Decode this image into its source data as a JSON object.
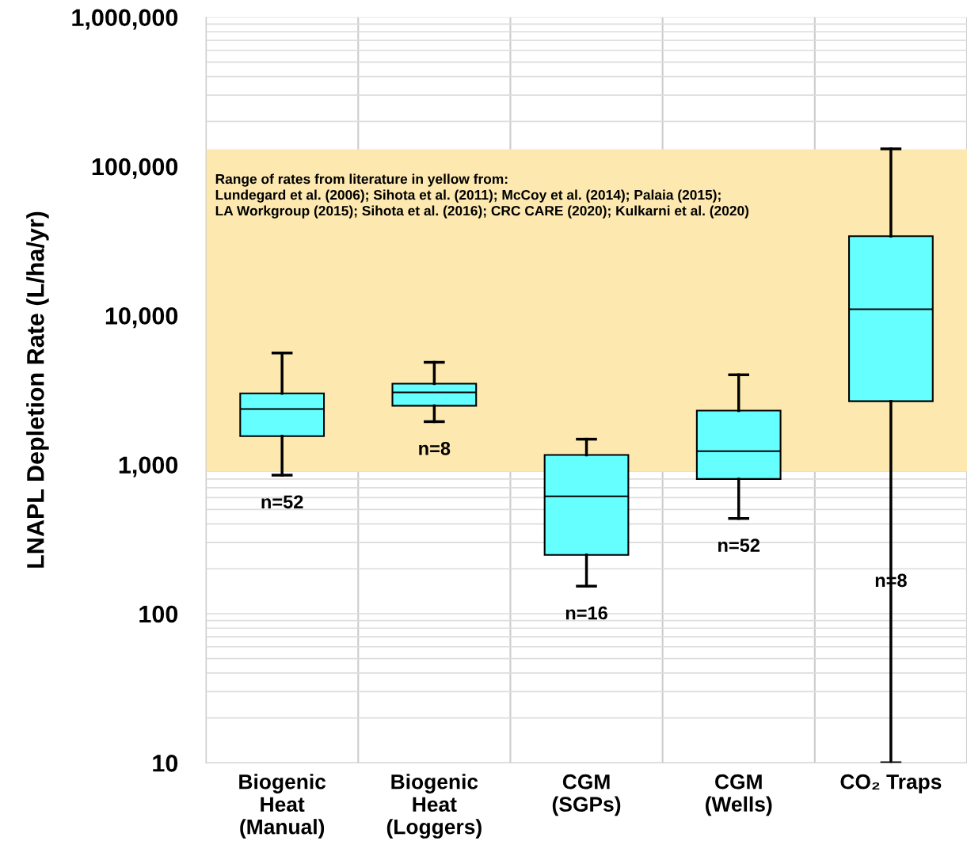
{
  "chart_data": {
    "type": "box",
    "ylabel": "LNAPL Depletion Rate (L/ha/yr)",
    "categories": [
      "Biogenic\nHeat\n(Manual)",
      "Biogenic\nHeat\n(Loggers)",
      "CGM\n(SGPs)",
      "CGM\n(Wells)",
      "CO₂ Traps"
    ],
    "boxes": [
      {
        "low": 850,
        "q1": 1550,
        "median": 2360,
        "q3": 3000,
        "high": 5600
      },
      {
        "low": 1940,
        "q1": 2480,
        "median": 3050,
        "q3": 3490,
        "high": 4850
      },
      {
        "low": 153,
        "q1": 248,
        "median": 612,
        "q3": 1160,
        "high": 1480
      },
      {
        "low": 435,
        "q1": 800,
        "median": 1230,
        "q3": 2300,
        "high": 4000
      },
      {
        "low": 10,
        "q1": 2660,
        "median": 11000,
        "q3": 34000,
        "high": 131000
      }
    ],
    "color": "#66ffff",
    "log": "y",
    "ylim": [
      10,
      1000000
    ],
    "yticks": [
      {
        "value": 10,
        "label": "10"
      },
      {
        "value": 100,
        "label": "100"
      },
      {
        "value": 1000,
        "label": "1,000"
      },
      {
        "value": 10000,
        "label": "10,000"
      },
      {
        "value": 100000,
        "label": "100,000"
      },
      {
        "value": 1000000,
        "label": "1,000,000"
      }
    ],
    "grid": true,
    "bands": [
      {
        "axis": "y",
        "from": 900,
        "to": 130000,
        "color": "#fde9b0"
      }
    ],
    "annotations": [
      "Range of rates from literature in yellow from:\nLundegard et al. (2006); Sihota et al. (2011); McCoy et al. (2014); Palaia (2015);\nLA Workgroup (2015); Sihota et al. (2016); CRC CARE (2020); Kulkarni et al. (2020)",
      "n=52",
      "n=8",
      "n=16",
      "n=52",
      "n=8"
    ]
  }
}
